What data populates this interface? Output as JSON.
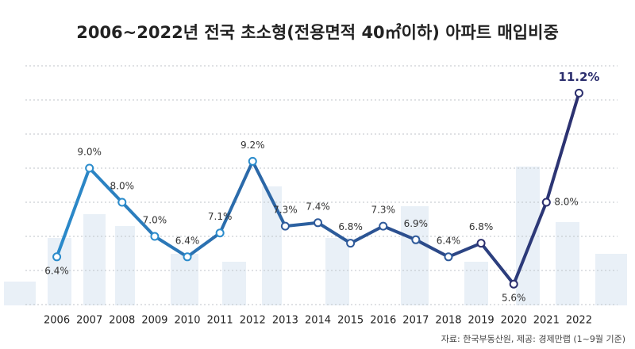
{
  "chart_data": {
    "type": "line",
    "title": "2006~2022년 전국 초소형(전용면적 40㎡이하) 아파트 매입비중",
    "source": "자료: 한국부동산원, 제공: 경제만랩 (1~9월 기준)",
    "categories": [
      "2006",
      "2007",
      "2008",
      "2009",
      "2010",
      "2011",
      "2012",
      "2013",
      "2014",
      "2015",
      "2016",
      "2017",
      "2018",
      "2019",
      "2020",
      "2021",
      "2022"
    ],
    "values": [
      6.4,
      9.0,
      8.0,
      7.0,
      6.4,
      7.1,
      9.2,
      7.3,
      7.4,
      6.8,
      7.3,
      6.9,
      6.4,
      6.8,
      5.6,
      8.0,
      11.2
    ],
    "value_labels": [
      "6.4%",
      "9.0%",
      "8.0%",
      "7.0%",
      "6.4%",
      "7.1%",
      "9.2%",
      "7.3%",
      "7.4%",
      "6.8%",
      "7.3%",
      "6.9%",
      "6.4%",
      "6.8%",
      "5.6%",
      "8.0%",
      "11.2%"
    ],
    "colors": [
      "#2b8ccc",
      "#2c2f6e"
    ],
    "ylim": [
      5,
      12
    ],
    "yticks": [
      5,
      6,
      7,
      8,
      9,
      10,
      11,
      12
    ],
    "grid": true
  }
}
